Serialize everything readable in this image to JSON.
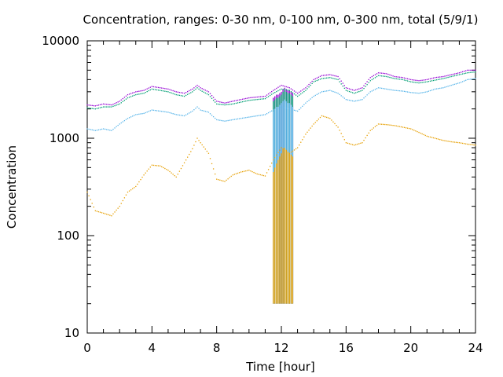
{
  "chart_data": {
    "type": "scatter",
    "title": "Concentration, ranges: 0-30 nm, 0-100 nm, 0-300 nm, total (5/9/1)",
    "xlabel": "Time [hour]",
    "ylabel": "Concentration",
    "xlim": [
      0,
      24
    ],
    "ylim": [
      10,
      10000
    ],
    "y_scale": "log",
    "grid": false,
    "legend": "none",
    "x_ticks": [
      "0",
      "4",
      "8",
      "12",
      "16",
      "20",
      "24"
    ],
    "x_tick_values": [
      0,
      4,
      8,
      12,
      16,
      20,
      24
    ],
    "y_ticks": [
      "10",
      "100",
      "1000",
      "10000"
    ],
    "y_tick_values": [
      10,
      100,
      1000,
      10000
    ],
    "colors": {
      "series_total": "#9400d3",
      "series_0_300": "#009e73",
      "series_0_100": "#56b4e9",
      "series_0_30": "#e69f00"
    },
    "series": [
      {
        "x": [
          0.0,
          0.5,
          1.0,
          1.5,
          2.0,
          2.5,
          3.0,
          3.5,
          4.0,
          4.5,
          5.0,
          5.5,
          6.0,
          6.5,
          6.8,
          7.0,
          7.5,
          8.0,
          8.5,
          9.0,
          9.5,
          10.0,
          10.5,
          11.0,
          11.5,
          12.0,
          12.5,
          13.0,
          13.5,
          14.0,
          14.5,
          15.0,
          15.5,
          16.0,
          16.5,
          17.0,
          17.5,
          18.0,
          18.5,
          19.0,
          19.5,
          20.0,
          20.5,
          21.0,
          21.5,
          22.0,
          22.5,
          23.0,
          23.5,
          24.0
        ],
        "y": [
          2200,
          2150,
          2250,
          2200,
          2400,
          2800,
          3000,
          3100,
          3400,
          3300,
          3200,
          3000,
          2900,
          3200,
          3500,
          3300,
          3000,
          2400,
          2300,
          2400,
          2500,
          2600,
          2650,
          2700,
          3100,
          3500,
          3300,
          2900,
          3300,
          4000,
          4400,
          4500,
          4300,
          3300,
          3100,
          3300,
          4200,
          4700,
          4600,
          4300,
          4200,
          4000,
          3900,
          4000,
          4200,
          4300,
          4500,
          4700,
          5000,
          5000
        ]
      },
      {
        "x": [
          0.0,
          0.5,
          1.0,
          1.5,
          2.0,
          2.5,
          3.0,
          3.5,
          4.0,
          4.5,
          5.0,
          5.5,
          6.0,
          6.5,
          6.8,
          7.0,
          7.5,
          8.0,
          8.5,
          9.0,
          9.5,
          10.0,
          10.5,
          11.0,
          11.5,
          12.0,
          12.5,
          13.0,
          13.5,
          14.0,
          14.5,
          15.0,
          15.5,
          16.0,
          16.5,
          17.0,
          17.5,
          18.0,
          18.5,
          19.0,
          19.5,
          20.0,
          20.5,
          21.0,
          21.5,
          22.0,
          22.5,
          23.0,
          23.5,
          24.0
        ],
        "y": [
          2050,
          2000,
          2100,
          2100,
          2250,
          2600,
          2800,
          2900,
          3200,
          3100,
          3000,
          2800,
          2700,
          3000,
          3300,
          3100,
          2800,
          2250,
          2200,
          2250,
          2350,
          2450,
          2500,
          2550,
          2900,
          3200,
          3100,
          2700,
          3100,
          3800,
          4100,
          4200,
          4000,
          3100,
          2900,
          3100,
          3900,
          4400,
          4300,
          4100,
          4000,
          3800,
          3700,
          3800,
          3950,
          4100,
          4300,
          4500,
          4700,
          4800
        ]
      },
      {
        "x": [
          0.0,
          0.5,
          1.0,
          1.5,
          2.0,
          2.5,
          3.0,
          3.5,
          4.0,
          4.5,
          5.0,
          5.5,
          6.0,
          6.5,
          6.8,
          7.0,
          7.5,
          8.0,
          8.5,
          9.0,
          9.5,
          10.0,
          10.5,
          11.0,
          11.5,
          12.0,
          12.5,
          13.0,
          13.5,
          14.0,
          14.5,
          15.0,
          15.5,
          16.0,
          16.5,
          17.0,
          17.5,
          18.0,
          18.5,
          19.0,
          19.5,
          20.0,
          20.5,
          21.0,
          21.5,
          22.0,
          22.5,
          23.0,
          23.5,
          24.0
        ],
        "y": [
          1250,
          1200,
          1250,
          1200,
          1400,
          1600,
          1750,
          1800,
          1950,
          1900,
          1850,
          1750,
          1700,
          1900,
          2100,
          1950,
          1850,
          1550,
          1500,
          1550,
          1600,
          1650,
          1700,
          1750,
          1950,
          2100,
          2000,
          1900,
          2300,
          2700,
          3000,
          3100,
          2900,
          2500,
          2400,
          2500,
          3000,
          3300,
          3200,
          3100,
          3050,
          2950,
          2900,
          3000,
          3200,
          3300,
          3500,
          3700,
          4000,
          4100
        ]
      },
      {
        "x": [
          0.0,
          0.5,
          1.0,
          1.5,
          2.0,
          2.5,
          3.0,
          3.5,
          4.0,
          4.5,
          5.0,
          5.5,
          6.0,
          6.5,
          6.8,
          7.0,
          7.5,
          8.0,
          8.5,
          9.0,
          9.5,
          10.0,
          10.5,
          11.0,
          11.5,
          12.0,
          12.5,
          13.0,
          13.5,
          14.0,
          14.5,
          15.0,
          15.5,
          16.0,
          16.5,
          17.0,
          17.5,
          18.0,
          18.5,
          19.0,
          19.5,
          20.0,
          20.5,
          21.0,
          21.5,
          22.0,
          22.5,
          23.0,
          23.5,
          24.0
        ],
        "y": [
          280,
          180,
          170,
          160,
          200,
          280,
          320,
          420,
          530,
          520,
          470,
          400,
          560,
          780,
          1000,
          900,
          700,
          380,
          360,
          420,
          450,
          470,
          430,
          410,
          600,
          800,
          700,
          800,
          1100,
          1400,
          1700,
          1600,
          1300,
          900,
          850,
          900,
          1200,
          1400,
          1380,
          1350,
          1300,
          1250,
          1150,
          1050,
          1000,
          950,
          920,
          900,
          870,
          850
        ]
      }
    ],
    "bars": {
      "x": [
        11.5,
        11.6,
        11.7,
        11.8,
        11.9,
        12.0,
        12.1,
        12.2,
        12.3,
        12.4,
        12.5,
        12.6,
        12.7
      ],
      "base": 20,
      "series": [
        {
          "top": [
            2600,
            2700,
            2800,
            2800,
            2900,
            3000,
            3200,
            3300,
            3200,
            3100,
            3100,
            3000,
            2900
          ],
          "color_key": "series_total"
        },
        {
          "top": [
            2400,
            2500,
            2600,
            2600,
            2700,
            2800,
            3000,
            3100,
            3000,
            2900,
            2900,
            2800,
            2700
          ],
          "color_key": "series_0_300"
        },
        {
          "top": [
            1900,
            2000,
            2100,
            2100,
            2200,
            2300,
            2400,
            2500,
            2400,
            2300,
            2300,
            2200,
            2100
          ],
          "color_key": "series_0_100"
        },
        {
          "top": [
            450,
            500,
            550,
            600,
            650,
            700,
            780,
            800,
            760,
            720,
            700,
            680,
            650
          ],
          "color_key": "series_0_30"
        }
      ]
    }
  }
}
